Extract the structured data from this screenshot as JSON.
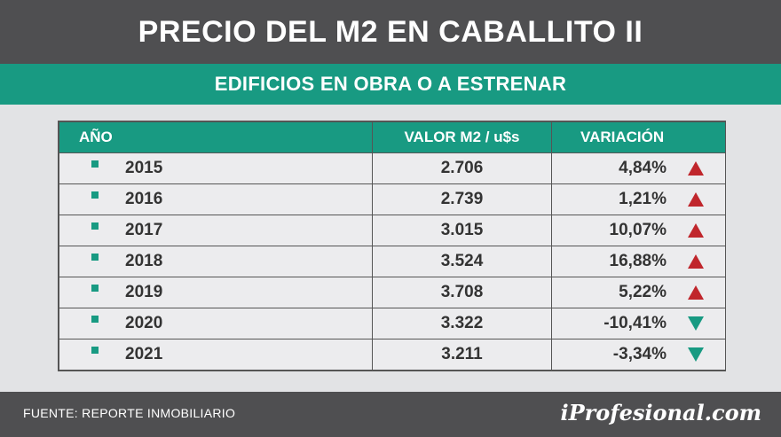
{
  "header": {
    "title": "PRECIO DEL M2 EN CABALLITO II",
    "subtitle": "EDIFICIOS EN OBRA O A ESTRENAR"
  },
  "chart_data": {
    "type": "table",
    "title": "PRECIO DEL M2 EN CABALLITO II",
    "subtitle": "EDIFICIOS EN OBRA O A ESTRENAR",
    "columns": [
      "AÑO",
      "VALOR M2 / u$s",
      "VARIACIÓN"
    ],
    "rows": [
      {
        "year": "2015",
        "value": "2.706",
        "variation": "4,84%",
        "direction": "up"
      },
      {
        "year": "2016",
        "value": "2.739",
        "variation": "1,21%",
        "direction": "up"
      },
      {
        "year": "2017",
        "value": "3.015",
        "variation": "10,07%",
        "direction": "up"
      },
      {
        "year": "2018",
        "value": "3.524",
        "variation": "16,88%",
        "direction": "up"
      },
      {
        "year": "2019",
        "value": "3.708",
        "variation": "5,22%",
        "direction": "up"
      },
      {
        "year": "2020",
        "value": "3.322",
        "variation": "-10,41%",
        "direction": "down"
      },
      {
        "year": "2021",
        "value": "3.211",
        "variation": "-3,34%",
        "direction": "down"
      }
    ]
  },
  "footer": {
    "source": "FUENTE: REPORTE INMOBILIARIO",
    "brand": "iProfesional.com"
  },
  "colors": {
    "accent": "#189a82",
    "dark": "#4f4f51",
    "up": "#c0262c",
    "down": "#189a82"
  }
}
